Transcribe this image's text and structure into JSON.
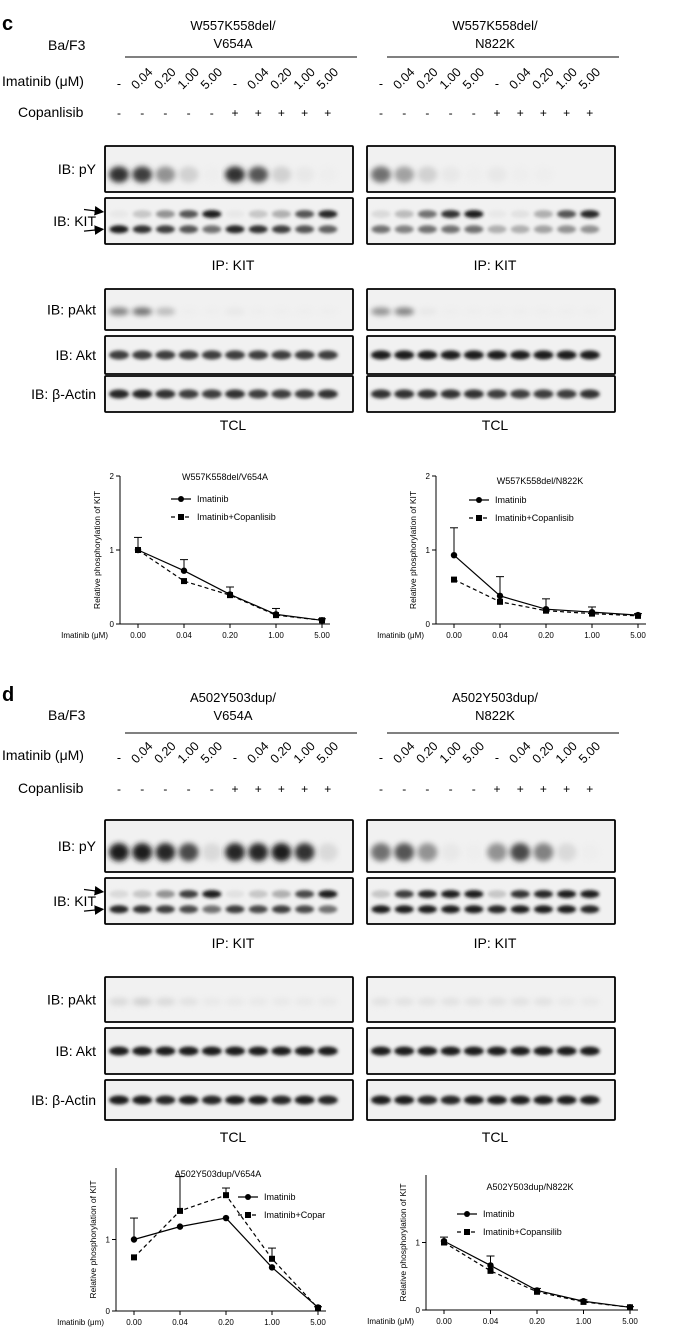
{
  "panels": [
    {
      "letter": "c",
      "cell_label": "Ba/F3",
      "imatinib_label": "Imatinib (μM)",
      "copanlisib_label": "Copanlisib",
      "groups": [
        {
          "title_line1": "W557K558del/",
          "title_line2": "V654A"
        },
        {
          "title_line1": "W557K558del/",
          "title_line2": "N822K"
        }
      ],
      "doses": [
        "-",
        "0.04",
        "0.20",
        "1.00",
        "5.00",
        "-",
        "0.04",
        "0.20",
        "1.00",
        "5.00"
      ],
      "copanlisib_signs": [
        "-",
        "-",
        "-",
        "-",
        "-",
        "+",
        "+",
        "+",
        "+",
        "+"
      ],
      "blot_rows": [
        "IB: pY",
        "IB: KIT",
        "IB: pAkt",
        "IB: Akt",
        "IB: β-Actin"
      ],
      "ip_label": "IP: KIT",
      "tcl_label": "TCL"
    },
    {
      "letter": "d",
      "cell_label": "Ba/F3",
      "imatinib_label": "Imatinib (μM)",
      "copanlisib_label": "Copanlisib",
      "groups": [
        {
          "title_line1": "A502Y503dup/",
          "title_line2": "V654A"
        },
        {
          "title_line1": "A502Y503dup/",
          "title_line2": "N822K"
        }
      ],
      "doses": [
        "-",
        "0.04",
        "0.20",
        "1.00",
        "5.00",
        "-",
        "0.04",
        "0.20",
        "1.00",
        "5.00"
      ],
      "copanlisib_signs": [
        "-",
        "-",
        "-",
        "-",
        "-",
        "+",
        "+",
        "+",
        "+",
        "+"
      ],
      "blot_rows": [
        "IB: pY",
        "IB: KIT",
        "IB: pAkt",
        "IB: Akt",
        "IB: β-Actin"
      ],
      "ip_label": "IP: KIT",
      "tcl_label": "TCL"
    }
  ],
  "chart_data": [
    {
      "type": "line",
      "title": "W557K558del/V654A",
      "xlabel": "Imatinib (μM)",
      "ylabel": "Relative phosphorylation of KIT",
      "categories": [
        "0.00",
        "0.04",
        "0.20",
        "1.00",
        "5.00"
      ],
      "ylim": [
        0,
        2
      ],
      "yticks": [
        "0",
        "1",
        "2"
      ],
      "legend_position": "top-right",
      "series": [
        {
          "name": "Imatinib",
          "style": "solid-circle",
          "values": [
            1.0,
            0.72,
            0.4,
            0.13,
            0.05
          ],
          "error": [
            0.17,
            0.15,
            0.1,
            0.08,
            0.02
          ]
        },
        {
          "name": "Imatinib+Copanlisib",
          "style": "dashed-square",
          "values": [
            1.0,
            0.58,
            0.39,
            0.12,
            0.05
          ],
          "error": [
            0.0,
            0.0,
            0.0,
            0.0,
            0.0
          ]
        }
      ]
    },
    {
      "type": "line",
      "title": "W557K558del/N822K",
      "xlabel": "Imatinib (μM)",
      "ylabel": "Relative phosphorylation of KIT",
      "categories": [
        "0.00",
        "0.04",
        "0.20",
        "1.00",
        "5.00"
      ],
      "ylim": [
        0,
        2
      ],
      "yticks": [
        "0",
        "1",
        "2"
      ],
      "legend_position": "top-right",
      "series": [
        {
          "name": "Imatinib",
          "style": "solid-circle",
          "values": [
            0.93,
            0.38,
            0.2,
            0.16,
            0.12
          ],
          "error": [
            0.37,
            0.26,
            0.14,
            0.07,
            0.02
          ]
        },
        {
          "name": "Imatinib+Copanlisib",
          "style": "dashed-square",
          "values": [
            0.6,
            0.3,
            0.18,
            0.14,
            0.11
          ],
          "error": [
            0.0,
            0.0,
            0.0,
            0.0,
            0.0
          ]
        }
      ]
    },
    {
      "type": "line",
      "title": "A502Y503dup/V654A",
      "xlabel": "Imatinib (μm)",
      "ylabel": "Relative phosphorylation of KIT",
      "categories": [
        "0.00",
        "0.04",
        "0.20",
        "1.00",
        "5.00"
      ],
      "ylim": [
        0,
        2
      ],
      "yticks": [
        "0",
        "1"
      ],
      "legend_position": "top-right",
      "series": [
        {
          "name": "Imatinib",
          "style": "solid-circle",
          "values": [
            1.0,
            1.18,
            1.3,
            0.61,
            0.05
          ],
          "error": [
            0.3,
            0.0,
            0.0,
            0.0,
            0.0
          ]
        },
        {
          "name": "Imatinib+Copar",
          "style": "dashed-square",
          "values": [
            0.75,
            1.4,
            1.62,
            0.73,
            0.04
          ],
          "error": [
            0.0,
            0.48,
            0.1,
            0.15,
            0.02
          ]
        }
      ]
    },
    {
      "type": "line",
      "title": "A502Y503dup/N822K",
      "xlabel": "Imatinib (μM)",
      "ylabel": "Relative phosphorylation of KIT",
      "categories": [
        "0.00",
        "0.04",
        "0.20",
        "1.00",
        "5.00"
      ],
      "ylim": [
        0,
        2
      ],
      "yticks": [
        "0",
        "1"
      ],
      "legend_position": "top-right",
      "series": [
        {
          "name": "Imatinib",
          "style": "solid-circle",
          "values": [
            1.02,
            0.66,
            0.29,
            0.13,
            0.04
          ],
          "error": [
            0.06,
            0.14,
            0.03,
            0.02,
            0.01
          ]
        },
        {
          "name": "Imatinib+Copansilib",
          "style": "dashed-square",
          "values": [
            1.0,
            0.58,
            0.27,
            0.12,
            0.04
          ],
          "error": [
            0.0,
            0.0,
            0.0,
            0.0,
            0.0
          ]
        }
      ]
    }
  ]
}
